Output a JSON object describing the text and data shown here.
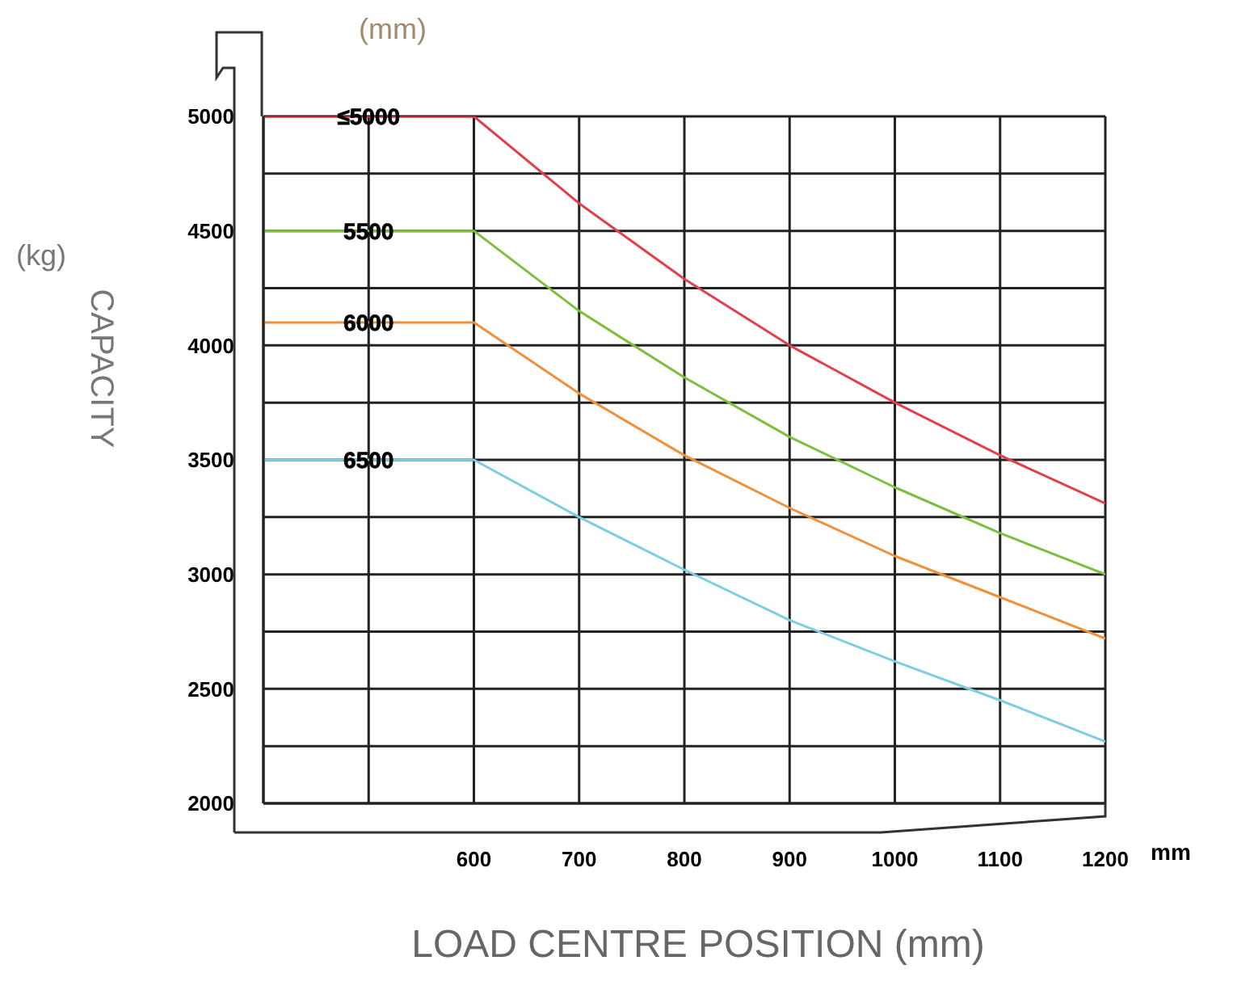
{
  "chart_data": {
    "type": "line",
    "xlabel": "LOAD CENTRE POSITION (mm)",
    "ylabel": "CAPACITY",
    "legend_title": "(mm)",
    "annotations": [
      "(kg)",
      "mm"
    ],
    "x": [
      400,
      500,
      600,
      700,
      800,
      900,
      1000,
      1100,
      1200
    ],
    "series": [
      {
        "name": "≤5000",
        "color": "#e0404a",
        "values": [
          5000,
          5000,
          5000,
          4620,
          4290,
          4000,
          3750,
          3520,
          3310
        ]
      },
      {
        "name": "5500",
        "color": "#7cbf3f",
        "values": [
          4500,
          4500,
          4500,
          4150,
          3860,
          3600,
          3380,
          3180,
          3000
        ]
      },
      {
        "name": "6000",
        "color": "#f0903a",
        "values": [
          4100,
          4100,
          4100,
          3790,
          3520,
          3290,
          3080,
          2900,
          2720
        ]
      },
      {
        "name": "6500",
        "color": "#7fcde0",
        "values": [
          3500,
          3500,
          3500,
          3250,
          3020,
          2800,
          2620,
          2450,
          2270
        ]
      }
    ],
    "xlim": [
      400,
      1200
    ],
    "xticks": [
      {
        "value": 400,
        "label": null
      },
      {
        "value": 500,
        "label": null
      },
      600,
      700,
      800,
      900,
      1000,
      1100,
      1200
    ],
    "ylim": [
      2000,
      5000
    ],
    "yticks": [
      2000,
      {
        "value": 2250,
        "label": null
      },
      2500,
      {
        "value": 2750,
        "label": null
      },
      3000,
      {
        "value": 3250,
        "label": null
      },
      3500,
      {
        "value": 3750,
        "label": null
      },
      4000,
      {
        "value": 4250,
        "label": null
      },
      4500,
      {
        "value": 4750,
        "label": null
      },
      5000
    ],
    "grid": true,
    "legend": false,
    "marker": "none",
    "line_style": "solid"
  }
}
